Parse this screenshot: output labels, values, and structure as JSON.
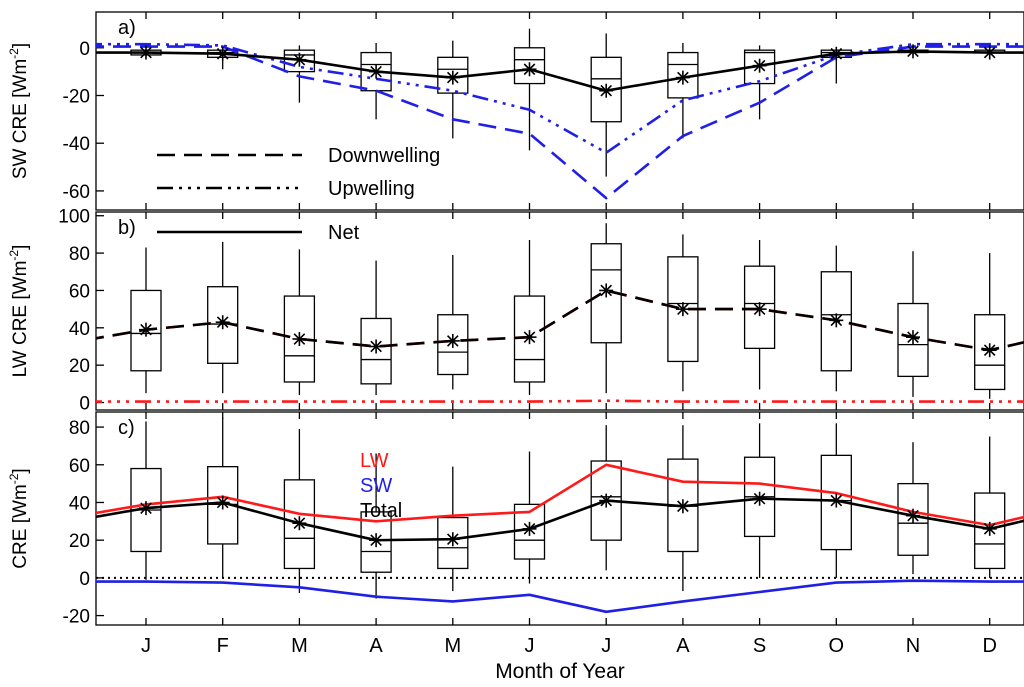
{
  "chart_data": {
    "type": "line",
    "categories": [
      "J",
      "F",
      "M",
      "A",
      "M",
      "J",
      "J",
      "A",
      "S",
      "O",
      "N",
      "D"
    ],
    "xlabel": "Month of Year",
    "colors": {
      "lw": "#ff1a1a",
      "sw": "#1f1fe6",
      "black": "#000000"
    },
    "panels": [
      {
        "id": "a",
        "tag": "a)",
        "ylabel": "SW CRE [Wm",
        "ylabel_sup": "-2",
        "ylabel_end": "]",
        "ylim": [
          -68,
          15
        ],
        "yticks": [
          0,
          -20,
          -40,
          -60
        ],
        "series": [
          {
            "name": "Downwelling",
            "color": "#1f1fe6",
            "style": "dash",
            "values": [
              0.5,
              0.5,
              -12,
              -18,
              -30,
              -36,
              -63,
              -37,
              -23,
              -4,
              0.5,
              0.5
            ]
          },
          {
            "name": "Upwelling",
            "color": "#1f1fe6",
            "style": "dashdotdotdot",
            "values": [
              1.5,
              1,
              -8,
              -13,
              -18,
              -26,
              -44,
              -22,
              -14,
              -3,
              1.5,
              1.5
            ]
          },
          {
            "name": "Net",
            "color": "#000000",
            "style": "solid",
            "markers": true,
            "values": [
              -2,
              -2.5,
              -5,
              -10,
              -12.5,
              -9,
              -18,
              -12.5,
              -7.5,
              -2.5,
              -1.5,
              -2
            ]
          }
        ],
        "boxes": [
          {
            "whisker_low": -3,
            "q1": -3,
            "median": -2,
            "q3": -1,
            "whisker_high": -1
          },
          {
            "whisker_low": -9,
            "q1": -4,
            "median": -2,
            "q3": -1,
            "whisker_high": 0
          },
          {
            "whisker_low": -23,
            "q1": -10,
            "median": -3,
            "q3": -1,
            "whisker_high": 1
          },
          {
            "whisker_low": -30,
            "q1": -18,
            "median": -7,
            "q3": -2,
            "whisker_high": 2
          },
          {
            "whisker_low": -38,
            "q1": -19,
            "median": -9,
            "q3": -4,
            "whisker_high": 3
          },
          {
            "whisker_low": -43,
            "q1": -15,
            "median": -5,
            "q3": 0,
            "whisker_high": 8
          },
          {
            "whisker_low": -54,
            "q1": -31,
            "median": -13,
            "q3": -4,
            "whisker_high": 6
          },
          {
            "whisker_low": -38,
            "q1": -21,
            "median": -7,
            "q3": -2,
            "whisker_high": 2
          },
          {
            "whisker_low": -30,
            "q1": -15,
            "median": -2,
            "q3": -1,
            "whisker_high": 1
          },
          {
            "whisker_low": -15,
            "q1": -4,
            "median": -2,
            "q3": -1,
            "whisker_high": -1
          },
          {
            "whisker_low": -3,
            "q1": -2,
            "median": -1,
            "q3": -1,
            "whisker_high": 0
          },
          {
            "whisker_low": -3,
            "q1": -2,
            "median": -2,
            "q3": -1,
            "whisker_high": -1
          }
        ]
      },
      {
        "id": "b",
        "tag": "b)",
        "ylabel": "LW CRE [Wm",
        "ylabel_sup": "-2",
        "ylabel_end": "]",
        "ylim": [
          -4,
          102
        ],
        "yticks": [
          0,
          20,
          40,
          60,
          80,
          100
        ],
        "series": [
          {
            "name": "Downwelling",
            "color": "#ff1a1a",
            "style": "dash",
            "values": [
              39,
              43,
              34,
              30,
              33,
              35,
              60,
              50,
              50,
              44,
              35,
              28
            ]
          },
          {
            "name": "Upwelling",
            "color": "#ff1a1a",
            "style": "dashdotdotdot",
            "values": [
              0.5,
              0.5,
              0.5,
              0.5,
              0.5,
              0.5,
              1,
              0.5,
              0.5,
              0.5,
              0.5,
              0.5
            ]
          },
          {
            "name": "Net",
            "color": "#000000",
            "style": "dash",
            "markers": true,
            "values": [
              39,
              43,
              34,
              30,
              33,
              35,
              60,
              50,
              50,
              44,
              35,
              28
            ]
          }
        ],
        "boxes": [
          {
            "whisker_low": 5,
            "q1": 17,
            "median": 37,
            "q3": 60,
            "whisker_high": 83
          },
          {
            "whisker_low": 5,
            "q1": 21,
            "median": 42,
            "q3": 62,
            "whisker_high": 86
          },
          {
            "whisker_low": 4,
            "q1": 11,
            "median": 25,
            "q3": 57,
            "whisker_high": 82
          },
          {
            "whisker_low": 4,
            "q1": 10,
            "median": 23,
            "q3": 45,
            "whisker_high": 76
          },
          {
            "whisker_low": 7,
            "q1": 15,
            "median": 27,
            "q3": 47,
            "whisker_high": 79
          },
          {
            "whisker_low": 4,
            "q1": 11,
            "median": 23,
            "q3": 57,
            "whisker_high": 87
          },
          {
            "whisker_low": 5,
            "q1": 32,
            "median": 71,
            "q3": 85,
            "whisker_high": 96
          },
          {
            "whisker_low": 6,
            "q1": 22,
            "median": 53,
            "q3": 78,
            "whisker_high": 90
          },
          {
            "whisker_low": 7,
            "q1": 29,
            "median": 53,
            "q3": 73,
            "whisker_high": 87
          },
          {
            "whisker_low": 6,
            "q1": 17,
            "median": 47,
            "q3": 70,
            "whisker_high": 84
          },
          {
            "whisker_low": 3,
            "q1": 14,
            "median": 31,
            "q3": 53,
            "whisker_high": 81
          },
          {
            "whisker_low": 2,
            "q1": 7,
            "median": 20,
            "q3": 47,
            "whisker_high": 80
          }
        ]
      },
      {
        "id": "c",
        "tag": "c)",
        "ylabel": "CRE [Wm",
        "ylabel_sup": "-2",
        "ylabel_end": "]",
        "ylim": [
          -25,
          88
        ],
        "yticks": [
          -20,
          0,
          20,
          40,
          60,
          80
        ],
        "zero_dotted": true,
        "series": [
          {
            "name": "LW",
            "color": "#ff1a1a",
            "style": "solid",
            "values": [
              39,
              43,
              34,
              30,
              33,
              35,
              60,
              51,
              50,
              45,
              35,
              28
            ]
          },
          {
            "name": "SW",
            "color": "#1f1fe6",
            "style": "solid",
            "values": [
              -2,
              -2.5,
              -5,
              -10,
              -12.5,
              -9,
              -18,
              -12.5,
              -7.5,
              -2.5,
              -1.5,
              -2
            ]
          },
          {
            "name": "Total",
            "color": "#000000",
            "style": "solid",
            "markers": true,
            "values": [
              37,
              40,
              29,
              20,
              20.5,
              26,
              41,
              38,
              42,
              41,
              33,
              26
            ]
          }
        ],
        "boxes": [
          {
            "whisker_low": -1,
            "q1": 14,
            "median": 36,
            "q3": 58,
            "whisker_high": 83
          },
          {
            "whisker_low": 0,
            "q1": 18,
            "median": 39,
            "q3": 59,
            "whisker_high": 85
          },
          {
            "whisker_low": -8,
            "q1": 5,
            "median": 21,
            "q3": 52,
            "whisker_high": 79
          },
          {
            "whisker_low": -11,
            "q1": 3,
            "median": 14,
            "q3": 35,
            "whisker_high": 66
          },
          {
            "whisker_low": -7,
            "q1": 5,
            "median": 16,
            "q3": 32,
            "whisker_high": 59
          },
          {
            "whisker_low": -3,
            "q1": 10,
            "median": 20,
            "q3": 39,
            "whisker_high": 67
          },
          {
            "whisker_low": 4,
            "q1": 20,
            "median": 43,
            "q3": 62,
            "whisker_high": 81
          },
          {
            "whisker_low": -7,
            "q1": 14,
            "median": 38,
            "q3": 63,
            "whisker_high": 81
          },
          {
            "whisker_low": 0,
            "q1": 22,
            "median": 43,
            "q3": 64,
            "whisker_high": 82
          },
          {
            "whisker_low": 0,
            "q1": 15,
            "median": 41,
            "q3": 65,
            "whisker_high": 82
          },
          {
            "whisker_low": 2,
            "q1": 12,
            "median": 29,
            "q3": 50,
            "whisker_high": 72
          },
          {
            "whisker_low": 0,
            "q1": 5,
            "median": 18,
            "q3": 45,
            "whisker_high": 75
          }
        ]
      }
    ],
    "legend_style": {
      "items": [
        "Downwelling",
        "Upwelling",
        "Net"
      ]
    },
    "legend_color": {
      "items": [
        "LW",
        "SW",
        "Total"
      ]
    }
  }
}
